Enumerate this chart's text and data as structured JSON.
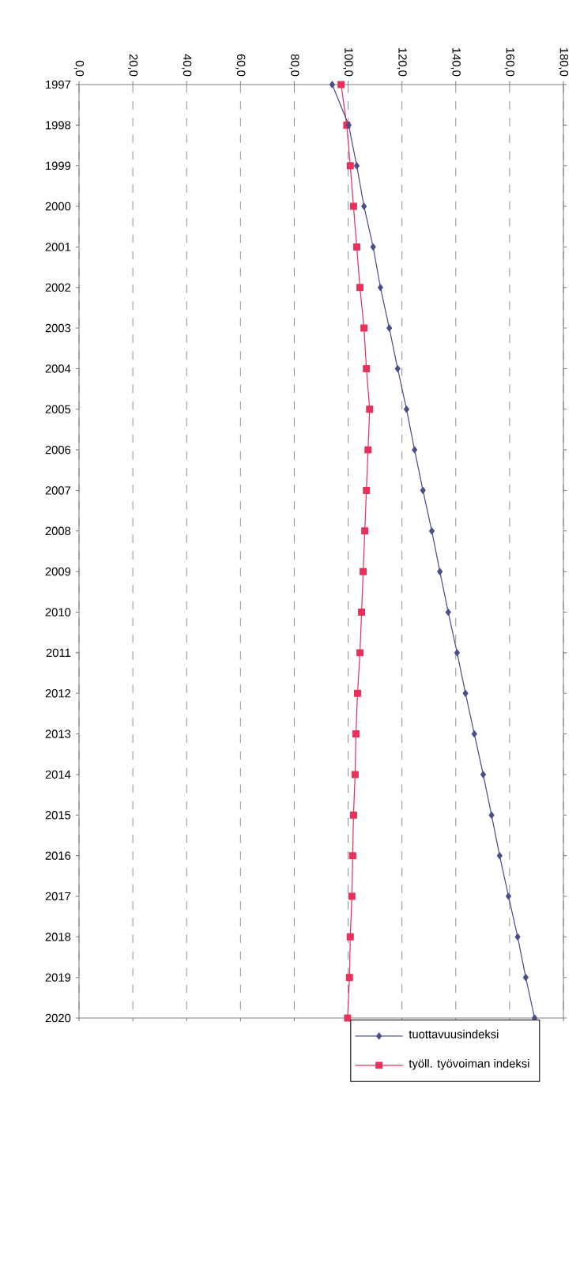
{
  "chart_data": {
    "type": "line",
    "orientation": "horizontal",
    "categories": [
      "1997",
      "1998",
      "1999",
      "2000",
      "2001",
      "2002",
      "2003",
      "2004",
      "2005",
      "2006",
      "2007",
      "2008",
      "2009",
      "2010",
      "2011",
      "2012",
      "2013",
      "2014",
      "2015",
      "2016",
      "2017",
      "2018",
      "2019",
      "2020"
    ],
    "series": [
      {
        "name": "tuottavuusindeksi",
        "color": "#4a4e8a",
        "marker": "diamond",
        "values": [
          94.1,
          100.2,
          103.2,
          105.9,
          109.3,
          112.0,
          115.3,
          118.4,
          121.7,
          124.7,
          127.8,
          131.1,
          134.1,
          137.2,
          140.5,
          143.6,
          146.9,
          150.2,
          153.3,
          156.3,
          159.6,
          163.0,
          166.0,
          169.3
        ]
      },
      {
        "name": "työll. työvoiman indeksi",
        "color": "#e8305a",
        "marker": "square",
        "values": [
          97.4,
          99.5,
          100.8,
          102.0,
          103.2,
          104.4,
          105.9,
          106.8,
          108.0,
          107.4,
          106.8,
          106.2,
          105.6,
          105.0,
          104.4,
          103.5,
          102.9,
          102.6,
          102.0,
          101.7,
          101.4,
          100.8,
          100.5,
          99.8
        ]
      }
    ],
    "xlim": [
      0,
      180
    ],
    "xticks": [
      {
        "value": 0,
        "label": "0,0"
      },
      {
        "value": 20,
        "label": "20,0"
      },
      {
        "value": 40,
        "label": "40,0"
      },
      {
        "value": 60,
        "label": "60,0"
      },
      {
        "value": 80,
        "label": "80,0"
      },
      {
        "value": 100,
        "label": "100,0"
      },
      {
        "value": 120,
        "label": "120,0"
      },
      {
        "value": 140,
        "label": "140,0"
      },
      {
        "value": 160,
        "label": "160,0"
      },
      {
        "value": 180,
        "label": "180,0"
      }
    ],
    "grid": "x",
    "legend": "bottom",
    "line_style": "solid"
  }
}
